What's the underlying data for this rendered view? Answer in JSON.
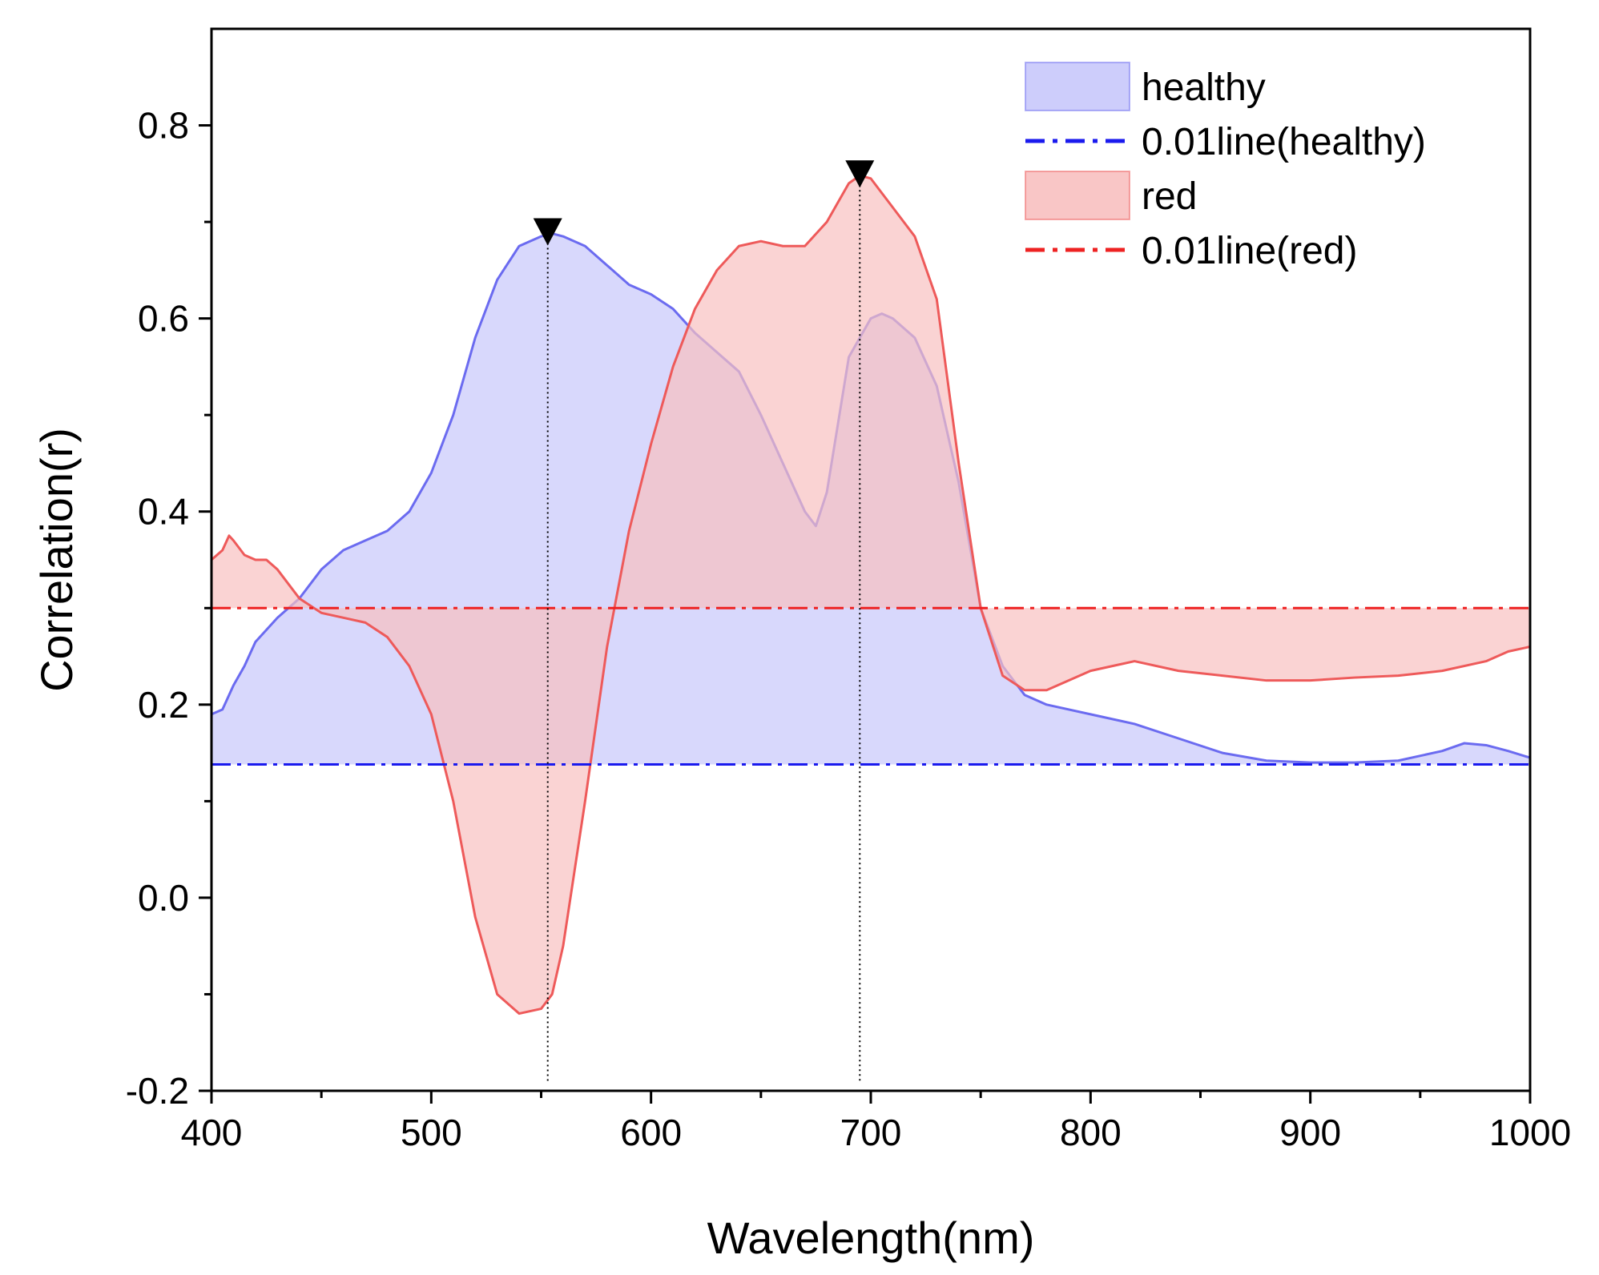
{
  "chart_data": {
    "type": "area",
    "title": "",
    "xlabel": "Wavelength(nm)",
    "ylabel": "Correlation(r)",
    "xlim": [
      400,
      1000
    ],
    "ylim": [
      -0.2,
      0.9
    ],
    "x_ticks": [
      400,
      500,
      600,
      700,
      800,
      900,
      1000
    ],
    "x_tick_labels": [
      "400",
      "500",
      "600",
      "700",
      "800",
      "900",
      "1000"
    ],
    "y_ticks": [
      -0.2,
      0.0,
      0.2,
      0.4,
      0.6,
      0.8
    ],
    "y_tick_labels": [
      "-0.2",
      "0.0",
      "0.2",
      "0.4",
      "0.6",
      "0.8"
    ],
    "grid": false,
    "legend_position": "top-right",
    "series": [
      {
        "name": "healthy",
        "kind": "filled-area",
        "color": "#6b6bf0",
        "fill": "#c8c8fb",
        "baseline": 0.138,
        "x": [
          400,
          405,
          410,
          415,
          420,
          430,
          440,
          450,
          460,
          470,
          480,
          490,
          500,
          510,
          520,
          530,
          540,
          550,
          555,
          560,
          570,
          580,
          590,
          600,
          610,
          620,
          630,
          640,
          650,
          660,
          670,
          675,
          680,
          690,
          700,
          705,
          710,
          720,
          730,
          740,
          750,
          760,
          770,
          780,
          800,
          820,
          840,
          860,
          880,
          900,
          920,
          940,
          960,
          970,
          980,
          990,
          1000
        ],
        "y": [
          0.19,
          0.195,
          0.22,
          0.24,
          0.265,
          0.29,
          0.31,
          0.34,
          0.36,
          0.37,
          0.38,
          0.4,
          0.44,
          0.5,
          0.58,
          0.64,
          0.675,
          0.685,
          0.688,
          0.685,
          0.675,
          0.655,
          0.635,
          0.625,
          0.61,
          0.585,
          0.565,
          0.545,
          0.5,
          0.45,
          0.4,
          0.385,
          0.42,
          0.56,
          0.6,
          0.605,
          0.6,
          0.58,
          0.53,
          0.43,
          0.3,
          0.24,
          0.21,
          0.2,
          0.19,
          0.18,
          0.165,
          0.15,
          0.142,
          0.14,
          0.14,
          0.142,
          0.152,
          0.16,
          0.158,
          0.152,
          0.145
        ]
      },
      {
        "name": "0.01line(healthy)",
        "kind": "dash-dot-line",
        "color": "#1a1aee",
        "y": 0.138
      },
      {
        "name": "red",
        "kind": "filled-area",
        "color": "#ee5a5a",
        "fill": "#f8c0c0",
        "baseline": 0.3,
        "x": [
          400,
          405,
          408,
          410,
          415,
          420,
          425,
          430,
          440,
          450,
          460,
          470,
          480,
          490,
          500,
          510,
          520,
          530,
          540,
          550,
          555,
          560,
          570,
          580,
          590,
          600,
          610,
          620,
          630,
          640,
          650,
          660,
          670,
          680,
          690,
          695,
          700,
          710,
          720,
          730,
          740,
          750,
          760,
          770,
          780,
          800,
          820,
          840,
          860,
          880,
          900,
          920,
          940,
          960,
          980,
          990,
          1000
        ],
        "y": [
          0.35,
          0.36,
          0.375,
          0.37,
          0.355,
          0.35,
          0.35,
          0.34,
          0.31,
          0.295,
          0.29,
          0.285,
          0.27,
          0.24,
          0.19,
          0.1,
          -0.02,
          -0.1,
          -0.12,
          -0.115,
          -0.1,
          -0.05,
          0.1,
          0.26,
          0.38,
          0.47,
          0.55,
          0.61,
          0.65,
          0.675,
          0.68,
          0.675,
          0.675,
          0.7,
          0.74,
          0.748,
          0.745,
          0.715,
          0.685,
          0.62,
          0.45,
          0.3,
          0.23,
          0.215,
          0.215,
          0.235,
          0.245,
          0.235,
          0.23,
          0.225,
          0.225,
          0.228,
          0.23,
          0.235,
          0.245,
          0.255,
          0.26
        ]
      },
      {
        "name": "0.01line(red)",
        "kind": "dash-dot-line",
        "color": "#ee2222",
        "y": 0.3
      }
    ],
    "markers": [
      {
        "x": 553,
        "y": 0.688,
        "symbol": "down-triangle",
        "color": "#000000"
      },
      {
        "x": 695,
        "y": 0.748,
        "symbol": "down-triangle",
        "color": "#000000"
      }
    ],
    "guide_lines": [
      {
        "x": 553,
        "style": "dotted",
        "color": "#000000"
      },
      {
        "x": 695,
        "style": "dotted",
        "color": "#000000"
      }
    ]
  }
}
